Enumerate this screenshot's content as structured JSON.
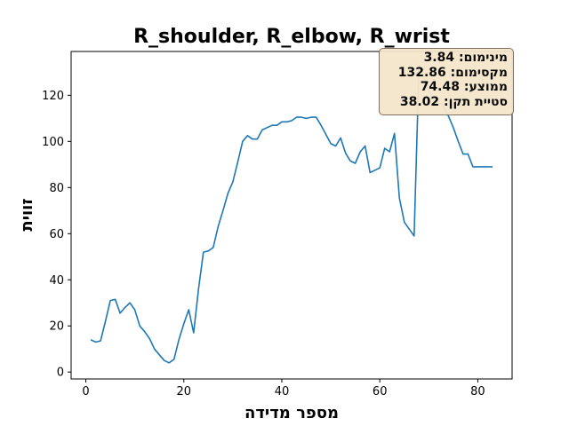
{
  "chart_data": {
    "type": "line",
    "title": "R_shoulder, R_elbow, R_wrist",
    "xlabel": "מספר מדידה",
    "ylabel": "זווית",
    "xlim": [
      -3,
      87
    ],
    "ylim": [
      -3,
      139
    ],
    "xticks": [
      0,
      20,
      40,
      60,
      80
    ],
    "yticks": [
      0,
      20,
      40,
      60,
      80,
      100,
      120
    ],
    "grid": false,
    "series": [
      {
        "color": "#1f77b4",
        "x": [
          1,
          2,
          3,
          4,
          5,
          6,
          7,
          8,
          9,
          10,
          11,
          12,
          13,
          14,
          15,
          16,
          17,
          18,
          19,
          20,
          21,
          22,
          23,
          24,
          25,
          26,
          27,
          28,
          29,
          30,
          31,
          32,
          33,
          34,
          35,
          36,
          37,
          38,
          39,
          40,
          41,
          42,
          43,
          44,
          45,
          46,
          47,
          48,
          49,
          50,
          51,
          52,
          53,
          54,
          55,
          56,
          57,
          58,
          59,
          60,
          61,
          62,
          63,
          64,
          65,
          66,
          67,
          68,
          69,
          70,
          71,
          72,
          73,
          74,
          75,
          76,
          77,
          78,
          79,
          80,
          81,
          82,
          83
        ],
        "y": [
          14,
          13,
          13.5,
          22,
          31,
          31.5,
          25.5,
          28,
          30,
          27,
          20,
          17.5,
          14.5,
          10,
          7.5,
          5,
          4,
          5.5,
          14,
          21,
          27,
          17,
          36,
          52,
          52.5,
          54,
          63,
          70,
          77.5,
          82.5,
          91,
          100,
          102.5,
          101,
          101,
          105,
          106,
          107,
          107,
          108.5,
          108.5,
          109,
          110.5,
          110.5,
          110,
          110.5,
          110.5,
          107,
          103,
          99,
          98,
          101.5,
          95,
          91.5,
          90.5,
          95.5,
          98,
          86.5,
          87.5,
          88.5,
          97,
          95.5,
          103.5,
          75.5,
          65,
          62,
          59,
          132.9,
          128,
          122,
          118,
          117,
          115,
          111,
          106,
          100,
          94.5,
          94.5,
          89,
          89,
          89,
          89,
          89
        ]
      }
    ],
    "stats": {
      "min_label": "מינימום: 3.84",
      "max_label": "מקסימום: 132.86",
      "mean_label": "ממוצע: 74.48",
      "std_label": "סטיית תקן: 38.02"
    }
  }
}
